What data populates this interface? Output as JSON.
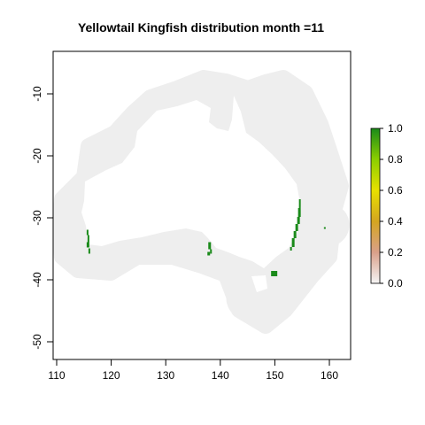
{
  "title": "Yellowtail Kingfish distribution month =11",
  "map": {
    "x_ticks": [
      "110",
      "120",
      "130",
      "140",
      "150",
      "160"
    ],
    "y_ticks": [
      "-10",
      "-20",
      "-30",
      "-40",
      "-50"
    ],
    "xlim": [
      109,
      163
    ],
    "ylim": [
      -53,
      -3
    ],
    "buffer_color": "#eeeeee",
    "land_color": "#ffffff",
    "presence_color": "#1a8a1a",
    "presence_cells": [
      {
        "region": "western-australia",
        "lon": 115.5,
        "lat": -32.5
      },
      {
        "region": "south-australia-gulf",
        "lon": 137.8,
        "lat": -34.5
      },
      {
        "region": "new-south-wales-coast",
        "lon": 152.8,
        "lat": -31.0
      },
      {
        "region": "tasmania",
        "lon": 149.8,
        "lat": -39.0
      },
      {
        "region": "lord-howe-island",
        "lon": 159.0,
        "lat": -31.5
      }
    ]
  },
  "legend": {
    "ticks": [
      "1.0",
      "0.8",
      "0.6",
      "0.4",
      "0.2",
      "0.0"
    ],
    "colors": [
      "#f5f5f5",
      "#d9a08a",
      "#d4a520",
      "#e8e000",
      "#8ccf00",
      "#1a8a1a"
    ]
  }
}
